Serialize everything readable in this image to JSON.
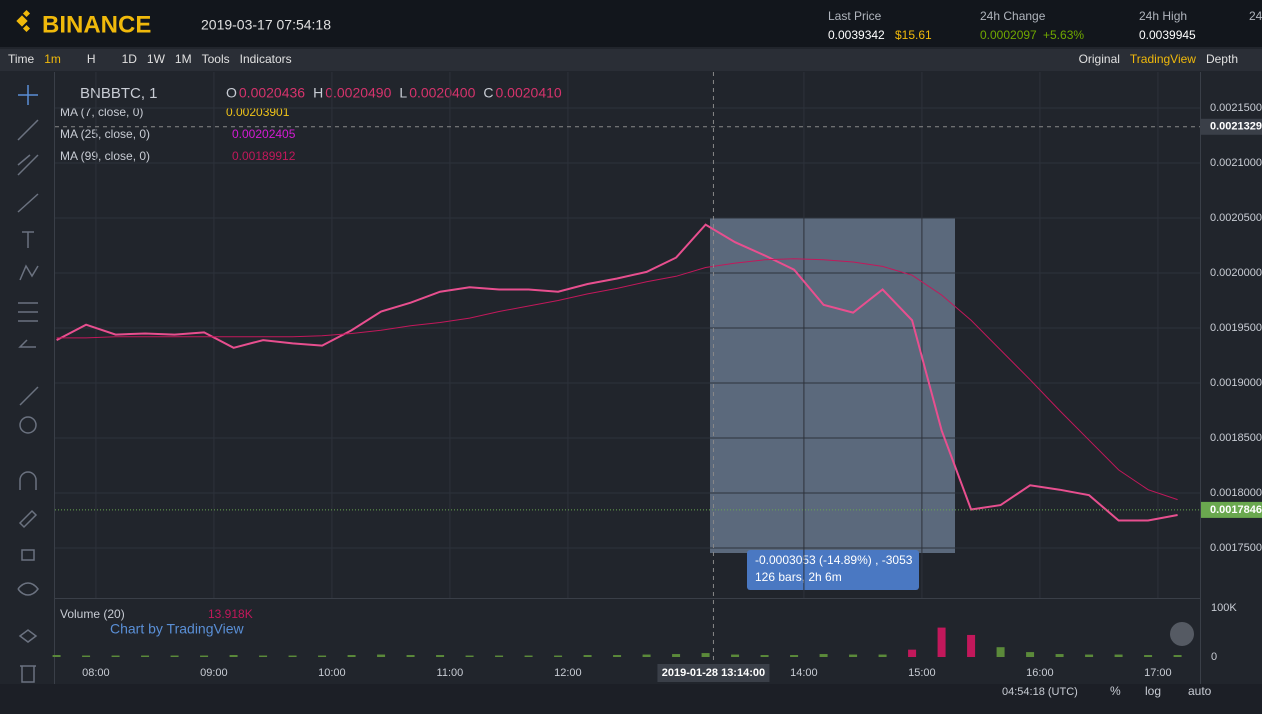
{
  "header": {
    "logo": "BINANCE",
    "datetime": "2019-03-17 07:54:18",
    "stats": [
      {
        "label": "Last Price",
        "value": "0.0039342",
        "extra": "$15.61"
      },
      {
        "label": "24h Change",
        "value": "0.0002097",
        "extra": "+5.63%"
      },
      {
        "label": "24h High",
        "value": "0.0039945"
      },
      {
        "label": "24"
      }
    ]
  },
  "toolbar": {
    "left": [
      "Time",
      "1m",
      "H",
      "1D",
      "1W",
      "1M",
      "Tools",
      "Indicators"
    ],
    "right": [
      "Original",
      "TradingView",
      "Depth"
    ]
  },
  "legend": {
    "symbol": "BNBBTC, 1",
    "ohlc": [
      {
        "k": "O",
        "v": "0.0020436"
      },
      {
        "k": "H",
        "v": "0.0020490"
      },
      {
        "k": "L",
        "v": "0.0020400"
      },
      {
        "k": "C",
        "v": "0.0020410"
      }
    ],
    "mas": [
      {
        "name": "MA (7, close, 0)",
        "v": "0.00203901",
        "color": "#f0c419"
      },
      {
        "name": "MA (25, close, 0)",
        "v": "0.00202405",
        "color": "#d41bd4"
      },
      {
        "name": "MA (99, close, 0)",
        "v": "0.00189912",
        "color": "#c2185b"
      }
    ],
    "volume": "Volume (20)",
    "volume_value": "13.918K",
    "credit": "Chart by TradingView"
  },
  "measure": {
    "line1": "-0.0003053 (-14.89%) , -3053",
    "line2": "126 bars, 2h 6m"
  },
  "footer": {
    "time": "04:54:18 (UTC)",
    "buttons": [
      "%",
      "log",
      "auto"
    ]
  },
  "chart_data": {
    "type": "line",
    "x": [
      460,
      475,
      490,
      505,
      520,
      535,
      550,
      565,
      580,
      595,
      610,
      625,
      640,
      655,
      670,
      685,
      700,
      715,
      730,
      745,
      760,
      775,
      790,
      805,
      820,
      835,
      850,
      865,
      880,
      895,
      910,
      925,
      940,
      955,
      970,
      985,
      1000,
      1015,
      1030
    ],
    "series": [
      {
        "name": "BNBBTC, 1",
        "color": "#e84f8f",
        "values": [
          0.001939,
          0.001953,
          0.001944,
          0.001945,
          0.001944,
          0.001946,
          0.001932,
          0.001939,
          0.001936,
          0.001934,
          0.001948,
          0.001965,
          0.001973,
          0.001983,
          0.001987,
          0.001985,
          0.001985,
          0.001983,
          0.00199,
          0.001995,
          0.002001,
          0.002014,
          0.002044,
          0.002028,
          0.002016,
          0.002003,
          0.001971,
          0.001964,
          0.001985,
          0.001957,
          0.001857,
          0.001785,
          0.001789,
          0.001807,
          0.001803,
          0.001798,
          0.001775,
          0.001775,
          0.00178
        ]
      },
      {
        "name": "MA (99, close, 0)",
        "color": "#c2185b",
        "values": [
          0.001941,
          0.001941,
          0.001942,
          0.001942,
          0.001942,
          0.001942,
          0.001942,
          0.001942,
          0.001942,
          0.001943,
          0.001945,
          0.001948,
          0.001952,
          0.001955,
          0.001959,
          0.001965,
          0.00197,
          0.001975,
          0.001981,
          0.001986,
          0.001992,
          0.001997,
          0.002005,
          0.002009,
          0.002012,
          0.002013,
          0.002012,
          0.00201,
          0.002006,
          0.001998,
          0.00198,
          0.001957,
          0.00193,
          0.001903,
          0.001875,
          0.001848,
          0.001821,
          0.001803,
          0.001794
        ]
      }
    ],
    "volume": {
      "color": "#5b8a3a",
      "values": [
        4000,
        3000,
        3000,
        3000,
        3000,
        3000,
        4000,
        3000,
        3000,
        3000,
        4000,
        5000,
        4000,
        4000,
        3000,
        3000,
        3000,
        3000,
        4000,
        4000,
        5000,
        6000,
        8000,
        5000,
        4000,
        4000,
        6000,
        5000,
        5000,
        15000,
        60000,
        45000,
        20000,
        10000,
        6000,
        5000,
        5000,
        4000,
        4000
      ],
      "ylim": [
        0,
        100000
      ],
      "yticks": [
        {
          "value": 100000,
          "label": "100K"
        },
        0
      ]
    },
    "xlim": [
      459.2,
      1041.4
    ],
    "xticks": [
      {
        "value": 480,
        "label": "08:00"
      },
      {
        "value": 540,
        "label": "09:00"
      },
      {
        "value": 600,
        "label": "10:00"
      },
      {
        "value": 660,
        "label": "11:00"
      },
      {
        "value": 720,
        "label": "12:00"
      },
      {
        "value": 840,
        "label": "14:00"
      },
      {
        "value": 900,
        "label": "15:00"
      },
      {
        "value": 960,
        "label": "16:00"
      },
      {
        "value": 1020,
        "label": "17:00"
      }
    ],
    "ylim": [
      0.0017045,
      0.0021827
    ],
    "yticks": [
      {
        "value": 0.00215,
        "label": "0.0021500"
      },
      {
        "value": 0.0021,
        "label": "0.0021000"
      },
      {
        "value": 0.00205,
        "label": "0.0020500"
      },
      {
        "value": 0.002,
        "label": "0.0020000"
      },
      {
        "value": 0.00195,
        "label": "0.0019500"
      },
      {
        "value": 0.0019,
        "label": "0.0019000"
      },
      {
        "value": 0.00185,
        "label": "0.0018500"
      },
      {
        "value": 0.0018,
        "label": "0.0018000"
      },
      {
        "value": 0.00175,
        "label": "0.0017500"
      }
    ],
    "crosshair": {
      "x": {
        "value": 794,
        "label": "2019-01-28 13:14:00"
      },
      "y": 0.0021329
    },
    "last_price": 0.0017846,
    "grid": true
  }
}
